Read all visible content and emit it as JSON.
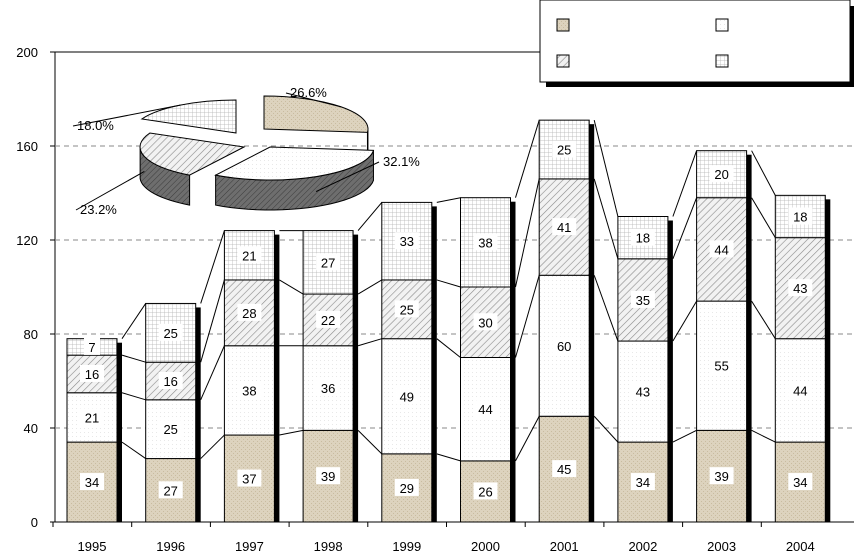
{
  "chart_data": {
    "type": "bar",
    "stacked": true,
    "categories": [
      "1995",
      "1996",
      "1997",
      "1998",
      "1999",
      "2000",
      "2001",
      "2002",
      "2003",
      "2004"
    ],
    "series": [
      {
        "values": [
          34,
          27,
          37,
          39,
          29,
          26,
          45,
          34,
          39,
          34
        ],
        "pattern": "beige"
      },
      {
        "values": [
          21,
          25,
          38,
          36,
          49,
          44,
          60,
          43,
          55,
          44
        ],
        "pattern": "white"
      },
      {
        "values": [
          16,
          16,
          28,
          22,
          25,
          30,
          41,
          35,
          44,
          43
        ],
        "pattern": "diagonal"
      },
      {
        "values": [
          7,
          25,
          21,
          27,
          33,
          38,
          25,
          18,
          20,
          18
        ],
        "pattern": "dots"
      }
    ],
    "y_ticks": [
      0,
      40,
      80,
      120,
      160,
      200
    ],
    "ylim": [
      0,
      200
    ],
    "grid": "dashed-horizontal",
    "legend_position": "top-right",
    "legend_labels": [
      "",
      "",
      "",
      ""
    ],
    "pie": {
      "slices": [
        {
          "label": "26.6%",
          "value": 26.6,
          "pattern": "beige"
        },
        {
          "label": "32.1%",
          "value": 32.1,
          "pattern": "white"
        },
        {
          "label": "23.2%",
          "value": 23.2,
          "pattern": "diagonal"
        },
        {
          "label": "18.0%",
          "value": 18.0,
          "pattern": "dots"
        }
      ]
    }
  },
  "colors": {
    "beige": "#ddd3be",
    "white": "#ffffff",
    "diagonal": "#e6e6e6",
    "dots": "#f4f4f4",
    "grid": "#888888",
    "pie_side": "#7a7a7a"
  }
}
